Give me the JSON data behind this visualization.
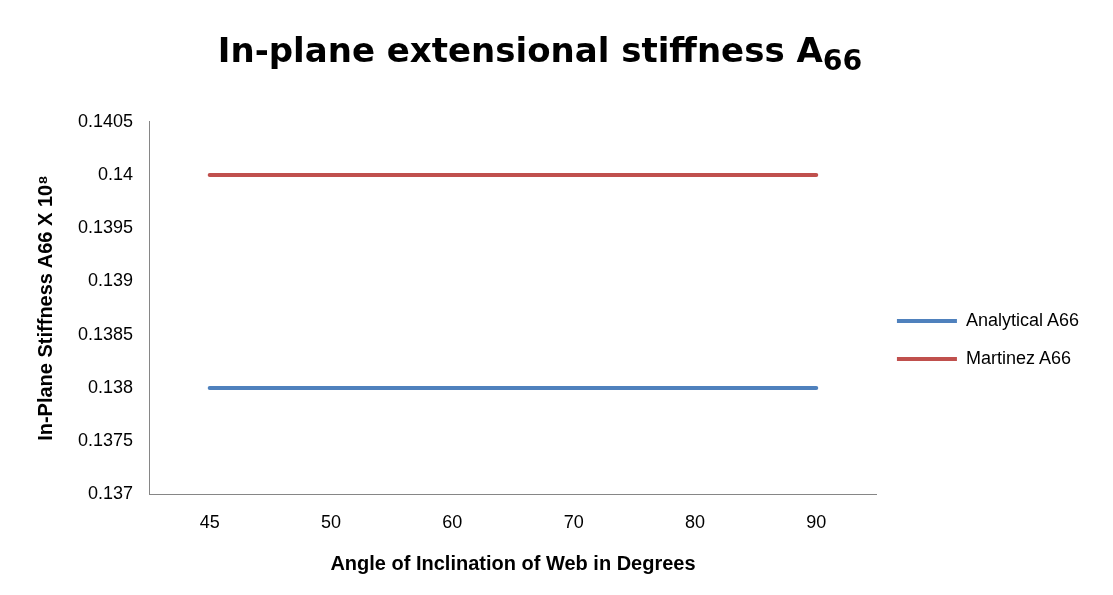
{
  "chart_data": {
    "type": "line",
    "title": "In-plane extensional stiffness A$_{66}$",
    "xlabel": "Angle of Inclination of Web in Degrees",
    "ylabel": "In-Plane Stiffness A66 X 10⁸",
    "categories": [
      "45",
      "50",
      "60",
      "70",
      "80",
      "90"
    ],
    "series": [
      {
        "name": "Analytical A66",
        "color": "#4f81bd",
        "values": [
          0.138,
          0.138,
          0.138,
          0.138,
          0.138,
          0.138
        ]
      },
      {
        "name": "Martinez A66",
        "color": "#c0504d",
        "values": [
          0.14,
          0.14,
          0.14,
          0.14,
          0.14,
          0.14
        ]
      }
    ],
    "ylim": [
      0.137,
      0.1405
    ],
    "yticks": [
      0.137,
      0.1375,
      0.138,
      0.1385,
      0.139,
      0.1395,
      0.14,
      0.1405
    ],
    "grid": false,
    "legend": "right",
    "marker": "none",
    "line_style": "solid"
  }
}
